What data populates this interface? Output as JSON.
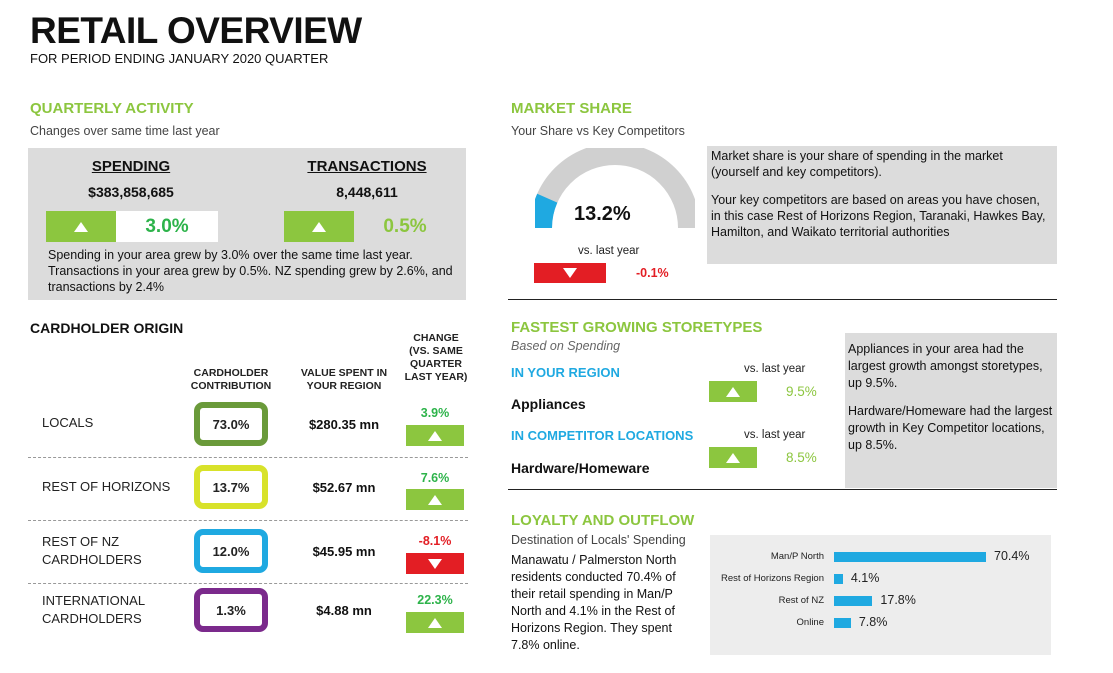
{
  "header": {
    "title": "RETAIL OVERVIEW",
    "subtitle": "FOR PERIOD ENDING JANUARY 2020 QUARTER"
  },
  "quarterly": {
    "heading": "QUARTERLY ACTIVITY",
    "subheading": "Changes over same time last year",
    "spending_label": "SPENDING",
    "spending_value": "$383,858,685",
    "spending_change": "3.0%",
    "transactions_label": "TRANSACTIONS",
    "transactions_value": "8,448,611",
    "transactions_change": "0.5%",
    "note": "Spending in your area grew by 3.0% over the same time last year. Transactions in your area grew by 0.5%.  NZ spending grew by 2.6%, and transactions by 2.4%"
  },
  "origin": {
    "heading": "CARDHOLDER ORIGIN",
    "col_contribution": "CARDHOLDER CONTRIBUTION",
    "col_value": "VALUE SPENT IN YOUR REGION",
    "col_change": "CHANGE (VS. SAME QUARTER LAST YEAR)",
    "rows": [
      {
        "label": "LOCALS",
        "contribution": "73.0%",
        "value": "$280.35 mn",
        "change": "3.9%",
        "direction": "up",
        "color": "#6a9a3a"
      },
      {
        "label": "REST OF HORIZONS",
        "contribution": "13.7%",
        "value": "$52.67 mn",
        "change": "7.6%",
        "direction": "up",
        "color": "#d8e22a"
      },
      {
        "label": "REST OF NZ CARDHOLDERS",
        "contribution": "12.0%",
        "value": "$45.95 mn",
        "change": "-8.1%",
        "direction": "down",
        "color": "#1fa9e1"
      },
      {
        "label": "INTERNATIONAL CARDHOLDERS",
        "contribution": "1.3%",
        "value": "$4.88 mn",
        "change": "22.3%",
        "direction": "up",
        "color": "#7b2a8c"
      }
    ]
  },
  "market": {
    "heading": "MARKET SHARE",
    "subheading": "Your Share vs Key Competitors",
    "share": "13.2%",
    "share_fraction": 0.132,
    "vs_label": "vs. last year",
    "change": "-0.1%",
    "note1": "Market share is your share of spending in the market (yourself and key competitors).",
    "note2": "Your key competitors are based on areas you have chosen, in this case Rest of Horizons Region, Taranaki, Hawkes Bay, Hamilton,  and Waikato territorial authorities"
  },
  "storetypes": {
    "heading": "FASTEST GROWING STORETYPES",
    "subheading": "Based on Spending",
    "region_label": "IN YOUR REGION",
    "region_vs": "vs. last year",
    "region_store": "Appliances",
    "region_change": "9.5%",
    "comp_label": "IN COMPETITOR LOCATIONS",
    "comp_vs": "vs. last year",
    "comp_store": "Hardware/Homeware",
    "comp_change": "8.5%",
    "note1": "Appliances in your area had the largest growth amongst storetypes, up 9.5%.",
    "note2": "Hardware/Homeware had the largest growth in Key Competitor locations, up 8.5%."
  },
  "loyalty": {
    "heading": "LOYALTY AND OUTFLOW",
    "subheading": "Destination of Locals' Spending",
    "note": "Manawatu / Palmerston North residents conducted 70.4% of their retail spending in Man/P North and 4.1% in the Rest of Horizons Region. They spent 7.8% online."
  },
  "chart_data": {
    "type": "bar",
    "orientation": "horizontal",
    "categories": [
      "Man/P North",
      "Rest of Horizons Region",
      "Rest of NZ",
      "Online"
    ],
    "values": [
      70.4,
      4.1,
      17.8,
      7.8
    ],
    "labels": [
      "70.4%",
      "4.1%",
      "17.8%",
      "7.8%"
    ],
    "color": "#1fa9e1"
  }
}
